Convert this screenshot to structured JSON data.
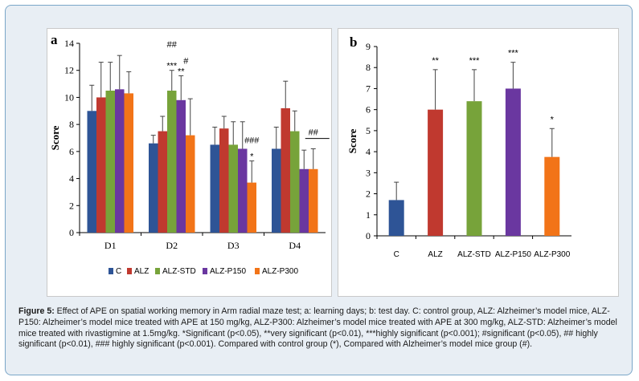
{
  "caption": {
    "label": "Figure 5:",
    "text": " Effect of APE on spatial working memory in Arm radial maze test; a: learning days; b: test day. C: control group, ALZ: Alzheimer’s model mice, ALZ-P150: Alzheimer’s model mice treated with APE at 150 mg/kg, ALZ-P300: Alzheimer’s model mice treated with APE at 300 mg/kg, ALZ-STD: Alzheimer’s model mice treated with rivastigmine at 1.5mg/kg. *Significant (p<0.05), **very significant (p<0.01), ***highly significant (p<0.001); #significant (p<0.05), ## highly significant (p<0.01), ### highly significant (p<0.001). Compared with control group (*), Compared with Alzheimer’s model mice group (#)."
  },
  "colors": {
    "C": "#2e5496",
    "ALZ": "#c0392f",
    "ALZ-STD": "#77a33a",
    "ALZ-P150": "#6a37a0",
    "ALZ-P300": "#f27418"
  },
  "chart_data": [
    {
      "panel": "a",
      "type": "bar",
      "ylabel": "Score",
      "ylim": [
        0,
        14
      ],
      "yticks": [
        "0",
        "2",
        "4",
        "6",
        "8",
        "10",
        "12",
        "14"
      ],
      "categories": [
        "D1",
        "D2",
        "D3",
        "D4"
      ],
      "legend": [
        "C",
        "ALZ",
        "ALZ-STD",
        "ALZ-P150",
        "ALZ-P300"
      ],
      "legend_position": "bottom",
      "series": [
        {
          "name": "C",
          "values": [
            9.0,
            6.6,
            6.5,
            6.2
          ],
          "errors": [
            1.9,
            0.6,
            1.3,
            1.6
          ],
          "annotations": [
            "",
            "",
            "",
            ""
          ]
        },
        {
          "name": "ALZ",
          "values": [
            10.0,
            7.5,
            7.7,
            9.2
          ],
          "errors": [
            2.6,
            1.1,
            0.9,
            2.0
          ],
          "annotations": [
            "",
            "",
            "",
            ""
          ]
        },
        {
          "name": "ALZ-STD",
          "values": [
            10.5,
            10.5,
            6.5,
            7.5
          ],
          "errors": [
            2.1,
            1.5,
            1.7,
            1.5
          ],
          "annotations": [
            "",
            "***",
            "",
            ""
          ]
        },
        {
          "name": "ALZ-P150",
          "values": [
            10.6,
            9.8,
            6.2,
            4.7
          ],
          "errors": [
            2.5,
            1.8,
            2.0,
            1.4
          ],
          "annotations": [
            "",
            "**",
            "",
            ""
          ]
        },
        {
          "name": "ALZ-P300",
          "values": [
            10.3,
            7.2,
            3.7,
            4.7
          ],
          "errors": [
            1.6,
            2.7,
            1.6,
            1.5
          ],
          "annotations": [
            "",
            "",
            "*",
            ""
          ]
        }
      ],
      "group_annotations": [
        {
          "category": "D2",
          "text": "##",
          "series": "ALZ-STD",
          "level": 13.7
        },
        {
          "category": "D2",
          "text": "#",
          "series": "ALZ-P150",
          "level": 12.5
        },
        {
          "category": "D3",
          "text": "###",
          "series": "ALZ-P300",
          "level": 6.6
        },
        {
          "category": "D4",
          "text": "##",
          "series": "ALZ-P300",
          "level": 7.2
        }
      ]
    },
    {
      "panel": "b",
      "type": "bar",
      "ylabel": "Score",
      "ylim": [
        0,
        9
      ],
      "yticks": [
        "0",
        "1",
        "2",
        "3",
        "4",
        "5",
        "6",
        "7",
        "8",
        "9"
      ],
      "categories": [
        "C",
        "ALZ",
        "ALZ-STD",
        "ALZ-P150",
        "ALZ-P300"
      ],
      "values": [
        1.7,
        6.0,
        6.4,
        7.0,
        3.75
      ],
      "errors": [
        0.85,
        1.9,
        1.5,
        1.25,
        1.35
      ],
      "annotations": [
        "",
        "**",
        "***",
        "***",
        "*"
      ]
    }
  ]
}
